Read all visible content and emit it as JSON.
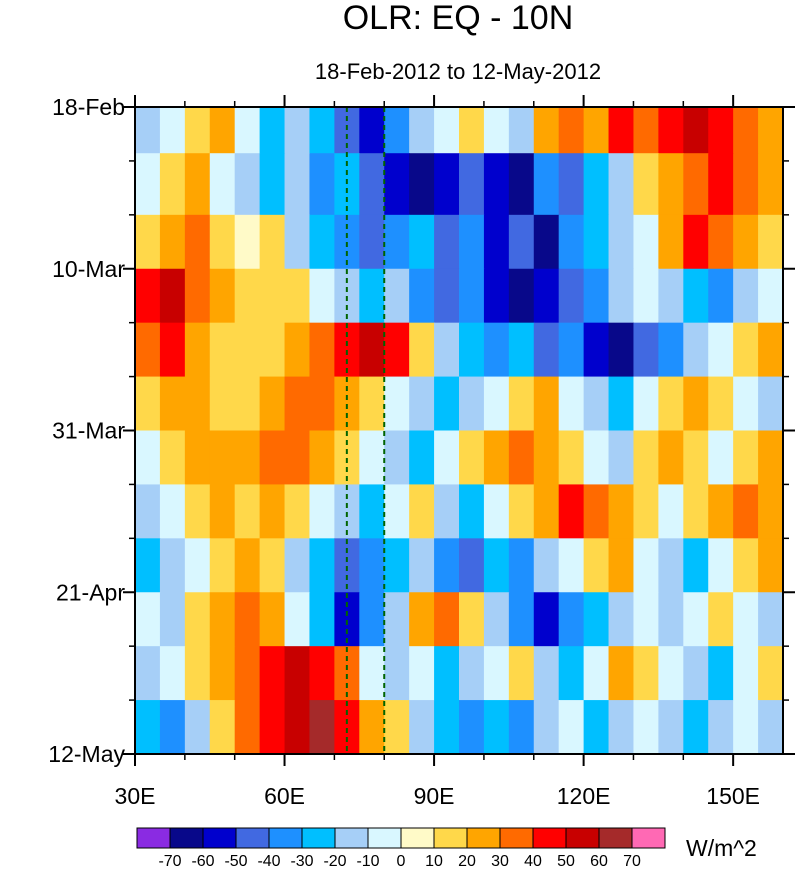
{
  "chart_data": {
    "type": "heatmap",
    "title": "OLR: EQ - 10N",
    "subtitle": "18-Feb-2012 to 12-May-2012",
    "x_range": [
      30,
      160
    ],
    "x_ticks": [
      {
        "value": 30,
        "label": "30E"
      },
      {
        "value": 60,
        "label": "60E"
      },
      {
        "value": 90,
        "label": "90E"
      },
      {
        "value": 120,
        "label": "120E"
      },
      {
        "value": 150,
        "label": "150E"
      }
    ],
    "y_range_days": [
      0,
      84
    ],
    "y_ticks": [
      {
        "day": 0,
        "label": "18-Feb"
      },
      {
        "day": 21,
        "label": "10-Mar"
      },
      {
        "day": 42,
        "label": "31-Mar"
      },
      {
        "day": 63,
        "label": "21-Apr"
      },
      {
        "day": 84,
        "label": "12-May"
      }
    ],
    "reference_longitudes": [
      72.5,
      80
    ],
    "colorbar": {
      "units": "W/m^2",
      "levels": [
        -70,
        -60,
        -50,
        -40,
        -30,
        -20,
        -10,
        0,
        10,
        20,
        30,
        40,
        50,
        60,
        70
      ],
      "colors": [
        "#8a2be2",
        "#08088a",
        "#0000cd",
        "#4169e1",
        "#1e90ff",
        "#00bfff",
        "#a6cff7",
        "#d9f7ff",
        "#fffac8",
        "#ffd84a",
        "#ffa500",
        "#ff6a00",
        "#ff0000",
        "#c80000",
        "#a52a2a",
        "#ff69b4"
      ]
    },
    "anomaly_bands": [
      {
        "day_start": 0,
        "day_end": 6,
        "values": [
          -20,
          -10,
          10,
          20,
          -10,
          -30,
          -20,
          -30,
          -50,
          -60,
          -40,
          -20,
          -10,
          10,
          -10,
          -20,
          20,
          30,
          20,
          40,
          30,
          40,
          50,
          40,
          30,
          20
        ]
      },
      {
        "day_start": 6,
        "day_end": 14,
        "values": [
          -10,
          10,
          20,
          -10,
          -20,
          -30,
          -20,
          -40,
          -30,
          -50,
          -60,
          -70,
          -60,
          -50,
          -60,
          -70,
          -40,
          -50,
          -30,
          -20,
          10,
          20,
          30,
          40,
          30,
          20
        ]
      },
      {
        "day_start": 14,
        "day_end": 21,
        "values": [
          10,
          20,
          30,
          10,
          0,
          10,
          -20,
          -30,
          -40,
          -50,
          -40,
          -30,
          -50,
          -40,
          -60,
          -50,
          -70,
          -40,
          -30,
          -20,
          -10,
          20,
          40,
          30,
          20,
          10
        ]
      },
      {
        "day_start": 21,
        "day_end": 28,
        "values": [
          40,
          50,
          30,
          20,
          10,
          10,
          10,
          -10,
          -20,
          -30,
          -20,
          -40,
          -50,
          -40,
          -60,
          -70,
          -60,
          -50,
          -40,
          -20,
          -10,
          -20,
          -30,
          -40,
          -20,
          -10
        ]
      },
      {
        "day_start": 28,
        "day_end": 35,
        "values": [
          30,
          40,
          20,
          10,
          10,
          10,
          20,
          30,
          40,
          50,
          40,
          10,
          -20,
          -30,
          -40,
          -30,
          -50,
          -40,
          -60,
          -70,
          -50,
          -40,
          -20,
          -10,
          10,
          20
        ]
      },
      {
        "day_start": 35,
        "day_end": 42,
        "values": [
          10,
          20,
          20,
          10,
          10,
          20,
          30,
          30,
          20,
          10,
          -10,
          -20,
          -30,
          -20,
          -10,
          10,
          20,
          -10,
          -20,
          -30,
          -10,
          10,
          20,
          10,
          -10,
          -20
        ]
      },
      {
        "day_start": 42,
        "day_end": 49,
        "values": [
          -10,
          10,
          20,
          20,
          20,
          30,
          30,
          20,
          10,
          -10,
          -20,
          -30,
          -10,
          10,
          20,
          30,
          20,
          10,
          -10,
          -20,
          10,
          20,
          10,
          -10,
          10,
          20
        ]
      },
      {
        "day_start": 49,
        "day_end": 56,
        "values": [
          -20,
          -10,
          10,
          20,
          10,
          20,
          10,
          -10,
          -20,
          -30,
          -10,
          10,
          -20,
          -30,
          -10,
          10,
          20,
          40,
          30,
          20,
          10,
          -10,
          10,
          20,
          30,
          20
        ]
      },
      {
        "day_start": 56,
        "day_end": 63,
        "values": [
          -30,
          -20,
          -10,
          10,
          20,
          10,
          -20,
          -30,
          -50,
          -40,
          -30,
          -20,
          -40,
          -50,
          -30,
          -40,
          -20,
          -10,
          10,
          20,
          -10,
          -20,
          -30,
          -10,
          10,
          20
        ]
      },
      {
        "day_start": 63,
        "day_end": 70,
        "values": [
          -10,
          -20,
          10,
          20,
          30,
          20,
          -10,
          -30,
          -60,
          -40,
          -20,
          20,
          30,
          10,
          -20,
          -40,
          -60,
          -40,
          -30,
          -20,
          -10,
          -20,
          -10,
          10,
          -10,
          -20
        ]
      },
      {
        "day_start": 70,
        "day_end": 77,
        "values": [
          -20,
          -10,
          10,
          20,
          30,
          40,
          50,
          40,
          30,
          -10,
          -20,
          -10,
          -30,
          -20,
          -10,
          10,
          -20,
          -30,
          -10,
          20,
          10,
          -10,
          -20,
          -30,
          -10,
          10
        ]
      },
      {
        "day_start": 77,
        "day_end": 84,
        "values": [
          -30,
          -40,
          -20,
          10,
          30,
          40,
          50,
          60,
          40,
          20,
          10,
          -20,
          -30,
          -40,
          -30,
          -40,
          -20,
          -10,
          -30,
          -20,
          -10,
          -20,
          -30,
          -20,
          -10,
          -20
        ]
      }
    ]
  }
}
